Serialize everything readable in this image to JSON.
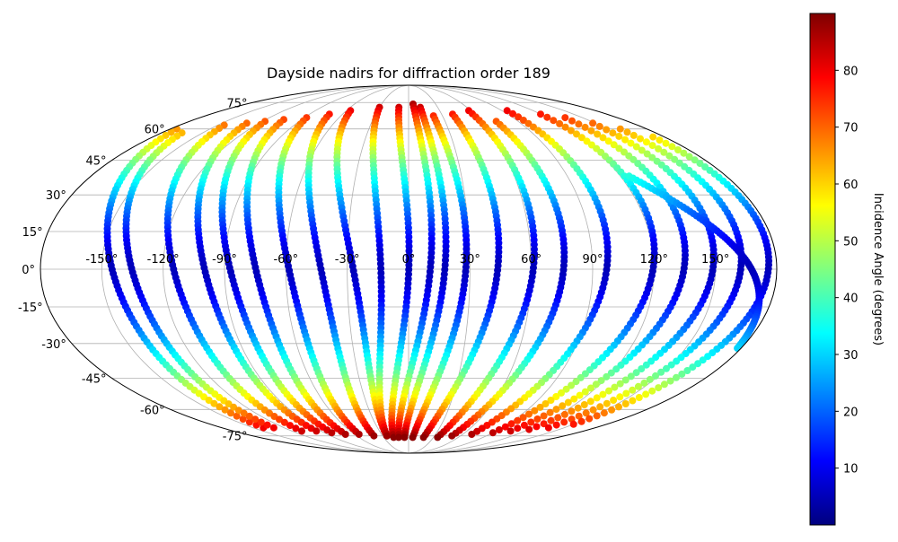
{
  "chart_data": {
    "type": "scatter",
    "projection": "mollweide",
    "title": "Dayside nadirs for diffraction order 189",
    "xlabel": "",
    "ylabel": "",
    "grid": true,
    "lon_ticks": [
      -150,
      -120,
      -90,
      -60,
      -30,
      0,
      30,
      60,
      90,
      120,
      150
    ],
    "lon_tick_labels": [
      "-150°",
      "-120°",
      "-90°",
      "-60°",
      "-30°",
      "0°",
      "30°",
      "60°",
      "90°",
      "120°",
      "150°"
    ],
    "lat_ticks": [
      75,
      60,
      45,
      30,
      15,
      0,
      -15,
      -30,
      -45,
      -60,
      -75
    ],
    "lat_tick_labels": [
      "75°",
      "60°",
      "45°",
      "30°",
      "15°",
      "0°",
      "-15°",
      "-30°",
      "-45°",
      "-60°",
      "-75°"
    ],
    "colorbar": {
      "label": "Incidence Angle (degrees)",
      "colormap": "jet",
      "range": [
        0,
        90
      ],
      "ticks": [
        10,
        20,
        30,
        40,
        50,
        60,
        70,
        80
      ],
      "tick_labels": [
        "10",
        "20",
        "30",
        "40",
        "50",
        "60",
        "70",
        "80"
      ]
    },
    "series": [
      {
        "start_lon": -175,
        "start_lat": 60,
        "end_lon": -140,
        "end_lat": -70
      },
      {
        "start_lon": -165,
        "start_lat": 58,
        "end_lon": -130,
        "end_lat": -70
      },
      {
        "start_lon": -145,
        "start_lat": 62,
        "end_lon": -110,
        "end_lat": -72
      },
      {
        "start_lon": -130,
        "start_lat": 63,
        "end_lon": -95,
        "end_lat": -72
      },
      {
        "start_lon": -118,
        "start_lat": 64,
        "end_lon": -82,
        "end_lat": -73
      },
      {
        "start_lon": -105,
        "start_lat": 65,
        "end_lon": -70,
        "end_lat": -74
      },
      {
        "start_lon": -88,
        "start_lat": 66,
        "end_lon": -55,
        "end_lat": -74
      },
      {
        "start_lon": -72,
        "start_lat": 68,
        "end_lon": -40,
        "end_lat": -75
      },
      {
        "start_lon": -56,
        "start_lat": 70,
        "end_lon": -25,
        "end_lat": -75
      },
      {
        "start_lon": -30,
        "start_lat": 72,
        "end_lon": -25,
        "end_lat": -75
      },
      {
        "start_lon": -10,
        "start_lat": 72,
        "end_lon": -18,
        "end_lat": -76
      },
      {
        "start_lon": 5,
        "start_lat": 74,
        "end_lon": -12,
        "end_lat": -76
      },
      {
        "start_lon": 12,
        "start_lat": 72,
        "end_lon": -5,
        "end_lat": -76
      },
      {
        "start_lon": 22,
        "start_lat": 67,
        "end_lon": 5,
        "end_lat": -76
      },
      {
        "start_lon": 40,
        "start_lat": 68,
        "end_lon": 18,
        "end_lat": -76
      },
      {
        "start_lon": 58,
        "start_lat": 70,
        "end_lon": 35,
        "end_lat": -76
      },
      {
        "start_lon": 72,
        "start_lat": 64,
        "end_lon": 50,
        "end_lat": -75
      },
      {
        "start_lon": 95,
        "start_lat": 70,
        "end_lon": 70,
        "end_lat": -74
      },
      {
        "start_lon": 120,
        "start_lat": 68,
        "end_lon": 90,
        "end_lat": -73
      },
      {
        "start_lon": 135,
        "start_lat": 66,
        "end_lon": 105,
        "end_lat": -72
      },
      {
        "start_lon": 148,
        "start_lat": 63,
        "end_lon": 120,
        "end_lat": -71
      },
      {
        "start_lon": 160,
        "start_lat": 60,
        "end_lon": 135,
        "end_lat": -70
      },
      {
        "start_lon": 172,
        "start_lat": 56,
        "end_lon": 150,
        "end_lat": -68
      },
      {
        "start_lon": 125,
        "start_lat": 38,
        "end_lon": 178,
        "end_lat": -32
      }
    ]
  }
}
